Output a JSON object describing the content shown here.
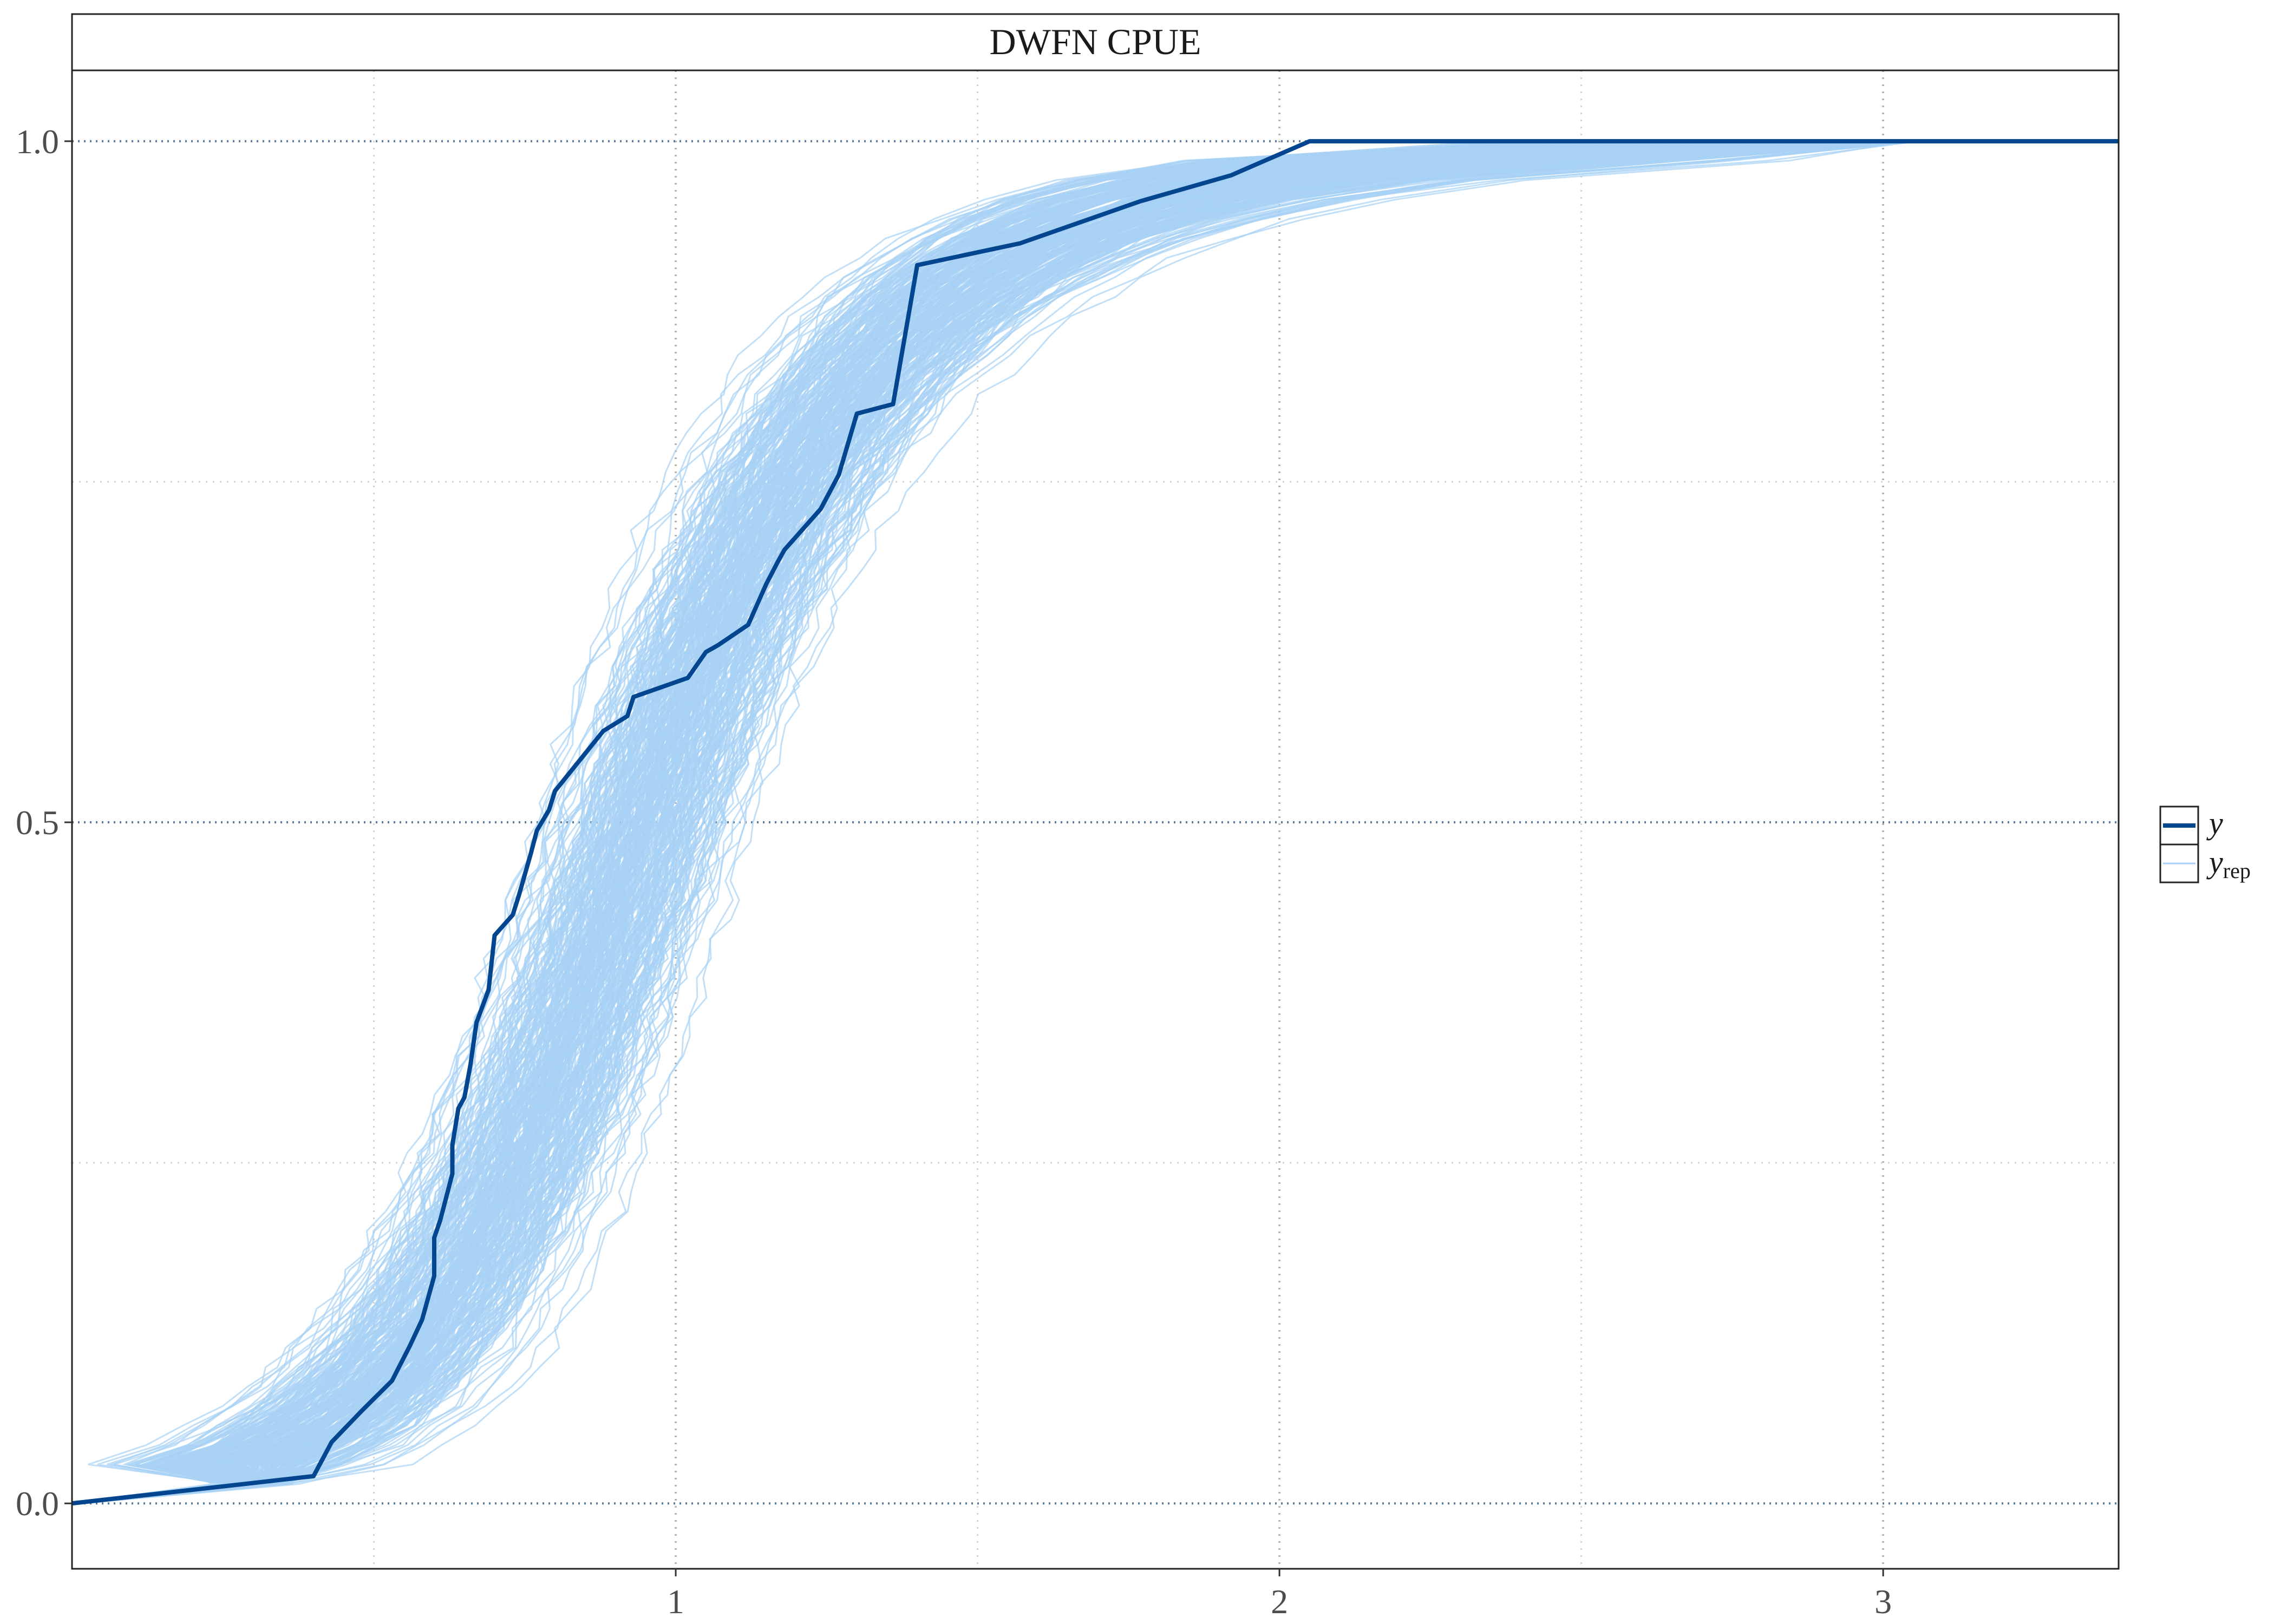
{
  "chart_data": {
    "type": "line",
    "title": "DWFN CPUE",
    "xlabel": "",
    "ylabel": "",
    "xlim": [
      0.0,
      3.39
    ],
    "ylim": [
      -0.048,
      1.052
    ],
    "x_ticks": [
      1,
      2,
      3
    ],
    "x_tick_labels": [
      "1",
      "2",
      "3"
    ],
    "x_minor_grid": [
      0.5,
      1.5,
      2.5
    ],
    "y_ticks": [
      0.0,
      0.5,
      1.0
    ],
    "y_tick_labels": [
      "0.0",
      "0.5",
      "1.0"
    ],
    "y_minor_grid": [
      0.25,
      0.75
    ],
    "grid": true,
    "legend_position": "right",
    "legend": [
      {
        "label": "y",
        "style": "thick"
      },
      {
        "label": "y",
        "subscript": "rep",
        "style": "thin"
      }
    ],
    "colors": {
      "y": "#03468f",
      "y_rep": "#a8d1f5",
      "grid": "#c8c8c8",
      "axis_line_at_ticks": "#5b7a99"
    },
    "replicate_count": 300,
    "series": [
      {
        "name": "y",
        "x": [
          0.0,
          0.4,
          0.43,
          0.48,
          0.53,
          0.56,
          0.58,
          0.6,
          0.6,
          0.61,
          0.63,
          0.63,
          0.64,
          0.65,
          0.66,
          0.67,
          0.69,
          0.7,
          0.73,
          0.74,
          0.76,
          0.77,
          0.79,
          0.8,
          0.88,
          0.92,
          0.93,
          1.02,
          1.05,
          1.07,
          1.12,
          1.15,
          1.17,
          1.18,
          1.24,
          1.27,
          1.28,
          1.3,
          1.36,
          1.4,
          1.57,
          1.77,
          1.92,
          2.05,
          3.39
        ],
        "y": [
          0.0,
          0.02,
          0.045,
          0.068,
          0.09,
          0.116,
          0.135,
          0.167,
          0.195,
          0.208,
          0.242,
          0.263,
          0.29,
          0.298,
          0.322,
          0.353,
          0.377,
          0.417,
          0.432,
          0.446,
          0.477,
          0.494,
          0.509,
          0.523,
          0.567,
          0.578,
          0.592,
          0.606,
          0.625,
          0.63,
          0.645,
          0.675,
          0.692,
          0.7,
          0.73,
          0.755,
          0.77,
          0.8,
          0.807,
          0.909,
          0.925,
          0.956,
          0.975,
          1.0,
          1.0
        ]
      },
      {
        "name": "y_rep",
        "note": "300 posterior predictive replicate ECDFs; each is an S-curve from (0,0) to 1.0, median crossing near x = 0.94, spread of medians about 0.74 to 1.16",
        "median_x_range": [
          0.74,
          1.16
        ],
        "x_start": 0.0,
        "x_end_max": 3.05
      }
    ]
  }
}
